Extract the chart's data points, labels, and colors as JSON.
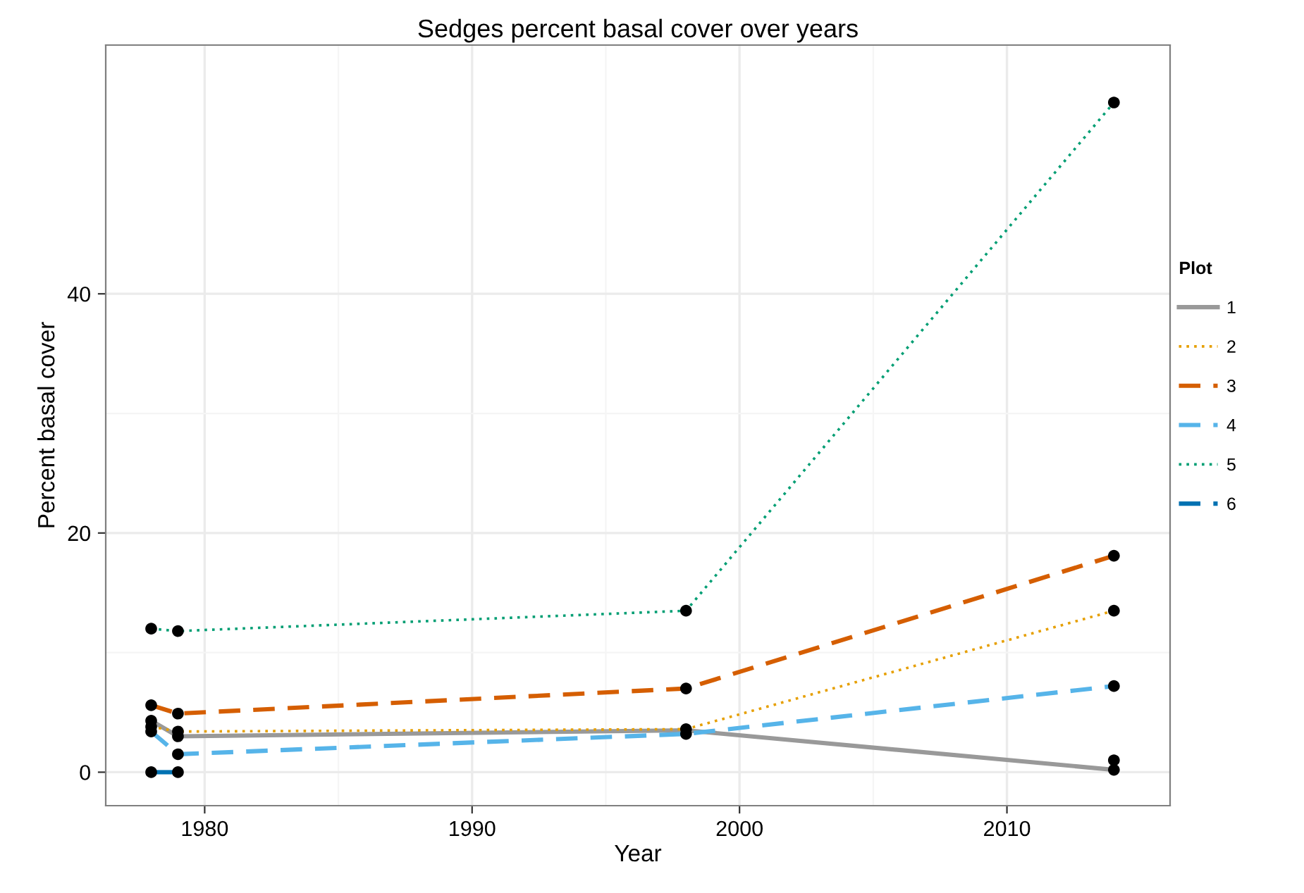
{
  "chart_data": {
    "type": "line",
    "title": "Sedges percent basal cover over years",
    "xlabel": "Year",
    "ylabel": "Percent basal cover",
    "legend_title": "Plot",
    "x": [
      1978,
      1979,
      1998,
      2014
    ],
    "series": [
      {
        "name": "1",
        "color": "#999999",
        "line_style": "solid",
        "values": [
          4.3,
          3.0,
          3.5,
          0.2
        ]
      },
      {
        "name": "2",
        "color": "#e69f00",
        "line_style": "dotted",
        "values": [
          3.8,
          3.4,
          3.6,
          13.5
        ]
      },
      {
        "name": "3",
        "color": "#d55e00",
        "line_style": "dashed",
        "values": [
          5.6,
          4.9,
          7.0,
          18.1
        ]
      },
      {
        "name": "4",
        "color": "#56b4e9",
        "line_style": "dashed",
        "values": [
          3.4,
          1.5,
          3.2,
          7.2
        ]
      },
      {
        "name": "5",
        "color": "#009e73",
        "line_style": "dotted",
        "values": [
          12.0,
          11.8,
          13.5,
          56.0
        ]
      },
      {
        "name": "6",
        "color": "#0072b2",
        "line_style": "dashed",
        "values": [
          0,
          0,
          null,
          null
        ]
      },
      {
        "type": "scatter",
        "marker": "circle",
        "color": "#000000",
        "x": [
          1978,
          1978,
          1978,
          1978,
          1978,
          1978,
          1979,
          1979,
          1979,
          1979,
          1979,
          1979,
          1998,
          1998,
          1998,
          1998,
          2014,
          2014,
          2014,
          2014,
          2014,
          2014
        ],
        "values": [
          12.0,
          5.6,
          4.3,
          3.8,
          3.4,
          0,
          11.8,
          4.9,
          3.4,
          3.0,
          1.5,
          0,
          13.5,
          7.0,
          3.6,
          3.2,
          56.0,
          18.1,
          13.5,
          7.2,
          1.0,
          0.2
        ]
      }
    ],
    "marker": "none",
    "grid": true,
    "legend": "right",
    "xlim": [
      1976.3,
      2016.1
    ],
    "xticks": [
      1980,
      1990,
      2000,
      2010
    ],
    "ylim": [
      -2.8,
      60.8
    ],
    "yticks": [
      0,
      20,
      40
    ]
  }
}
